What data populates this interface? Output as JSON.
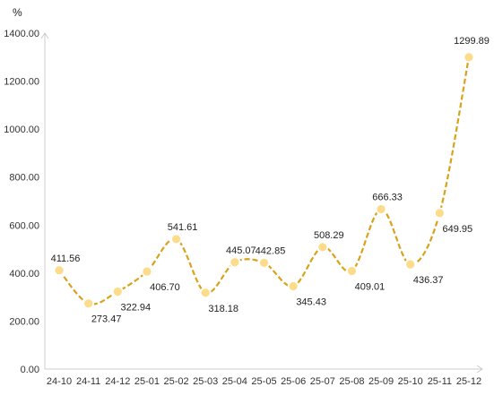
{
  "chart_data": {
    "type": "line",
    "title": "",
    "xlabel": "",
    "ylabel": "%",
    "categories": [
      "24-10",
      "24-11",
      "24-12",
      "25-01",
      "25-02",
      "25-03",
      "25-04",
      "25-05",
      "25-06",
      "25-07",
      "25-08",
      "25-09",
      "25-10",
      "25-11",
      "25-12"
    ],
    "series": [
      {
        "values": [
          411.56,
          273.47,
          322.94,
          406.7,
          541.61,
          318.18,
          445.07,
          442.85,
          345.43,
          508.29,
          409.01,
          666.33,
          436.37,
          649.95,
          1299.89
        ],
        "labels": [
          "411.56",
          "273.47",
          "322.94",
          "406.70",
          "541.61",
          "318.18",
          "445.07",
          "442.85",
          "345.43",
          "508.29",
          "409.01",
          "666.33",
          "436.37",
          "649.95",
          "1299.89"
        ],
        "label_positions": [
          "above",
          "below",
          "below",
          "below",
          "above",
          "below",
          "above",
          "above",
          "below",
          "above",
          "below",
          "above",
          "below",
          "below",
          "above"
        ]
      }
    ],
    "ylim": [
      0,
      1400
    ],
    "yticks": [
      "0.00",
      "200.00",
      "400.00",
      "600.00",
      "800.00",
      "1000.00",
      "1200.00",
      "1400.00"
    ],
    "grid": false,
    "legend": "none",
    "colors": {
      "line": "#d9a21b",
      "marker_fill": "#fcdc8a",
      "marker_stroke": "#ffffff",
      "axis": "#cccccc"
    }
  }
}
